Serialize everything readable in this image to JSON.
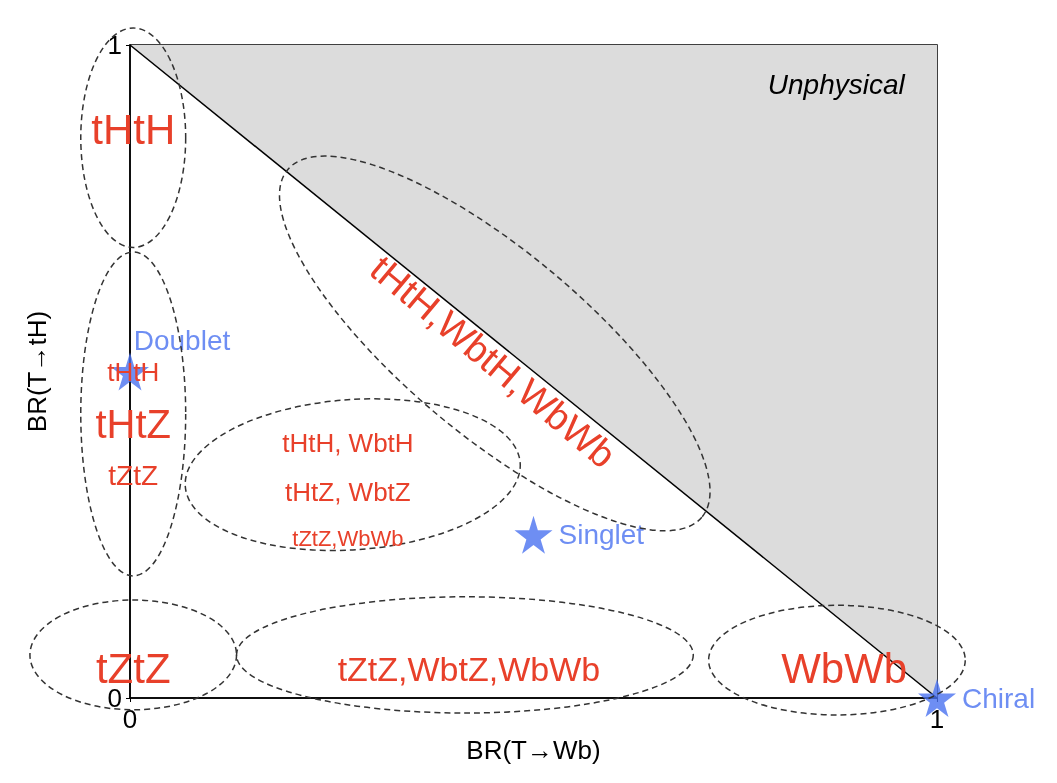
{
  "chart_data": {
    "type": "scatter",
    "xlabel": "BR(T→Wb)",
    "ylabel": "BR(T→tH)",
    "xlim": [
      0,
      1
    ],
    "ylim": [
      0,
      1
    ],
    "xticks": [
      0,
      1
    ],
    "yticks": [
      0,
      1
    ],
    "grid": false,
    "legend": false,
    "marker": "star",
    "series": [
      {
        "type": "area",
        "color": "#dcdcdc",
        "marker": "none",
        "x": [
          0,
          1
        ],
        "values": [
          1,
          0
        ]
      },
      {
        "name": "Doublet",
        "color": "#4a72f0",
        "x": [
          0
        ],
        "values": [
          0.5
        ]
      },
      {
        "name": "Singlet",
        "color": "#4a72f0",
        "x": [
          0.5
        ],
        "values": [
          0.25
        ]
      },
      {
        "name": "Chiral",
        "color": "#4a72f0",
        "x": [
          1
        ],
        "values": [
          0
        ]
      }
    ],
    "annotations": [
      "Unphysical",
      "tHtH",
      "tHtH",
      "tHtZ",
      "tZtZ",
      "tHtH, WbtH",
      "tHtZ, WbtZ",
      "tZtZ,WbWb",
      "tHtH,WbtH,WbWb",
      "tZtZ",
      "tZtZ,WbtZ,WbWb",
      "WbWb"
    ]
  }
}
